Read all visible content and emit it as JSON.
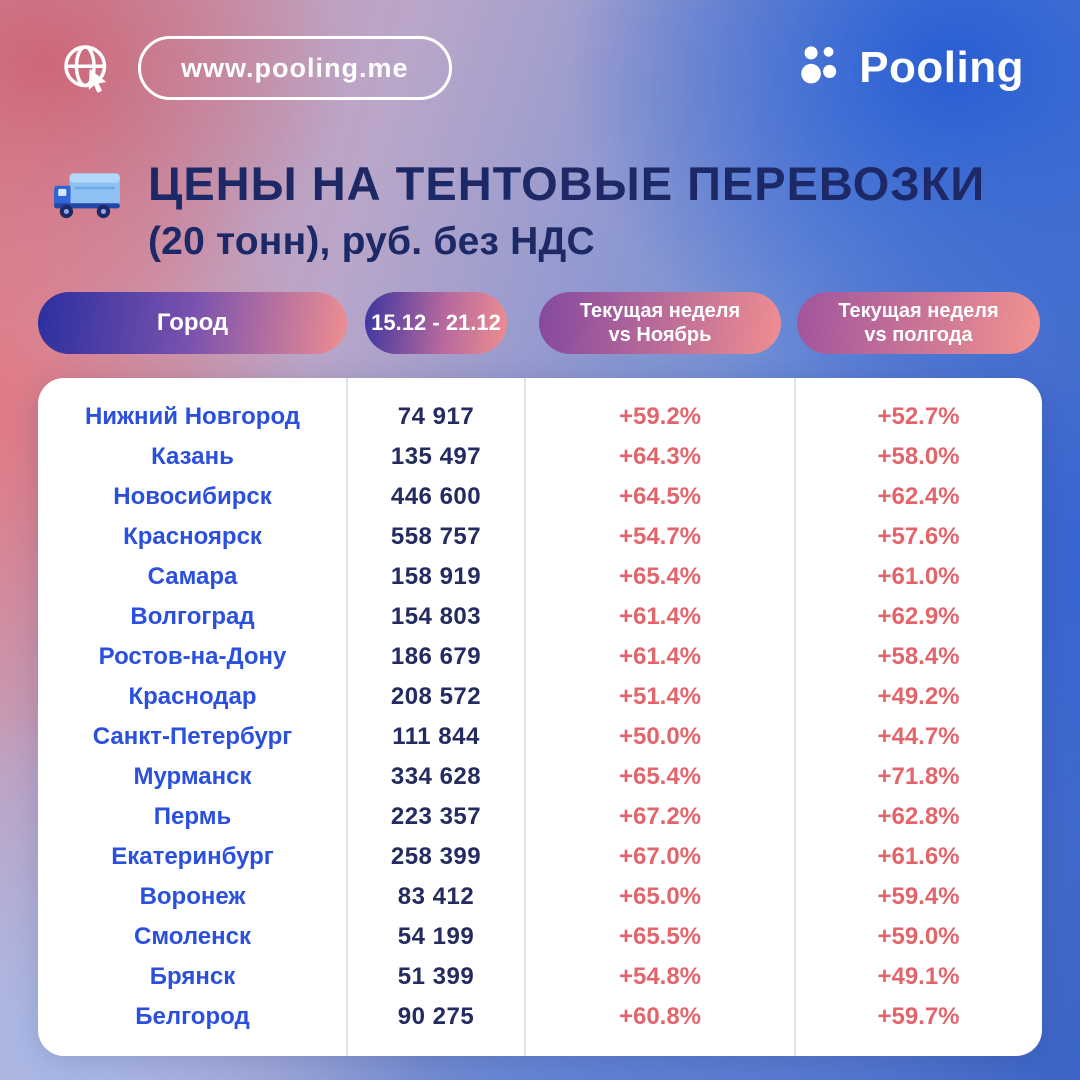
{
  "header": {
    "url": "www.pooling.me",
    "brand": "Pooling"
  },
  "title": {
    "line1": "ЦЕНЫ НА ТЕНТОВЫЕ ПЕРЕВОЗКИ",
    "line2": "(20 тонн), руб. без НДС"
  },
  "chart_data": {
    "type": "table",
    "title": "ЦЕНЫ НА ТЕНТОВЫЕ ПЕРЕВОЗКИ (20 тонн), руб. без НДС",
    "columns": [
      {
        "line1": "Город"
      },
      {
        "line1": "15.12 - 21.12"
      },
      {
        "line1": "Текущая неделя",
        "line2": "vs Ноябрь"
      },
      {
        "line1": "Текущая неделя",
        "line2": "vs полгода"
      }
    ],
    "rows": [
      {
        "city": "Нижний Новгород",
        "price": "74 917",
        "vs_november": "+59.2%",
        "vs_half_year": "+52.7%"
      },
      {
        "city": "Казань",
        "price": "135 497",
        "vs_november": "+64.3%",
        "vs_half_year": "+58.0%"
      },
      {
        "city": "Новосибирск",
        "price": "446 600",
        "vs_november": "+64.5%",
        "vs_half_year": "+62.4%"
      },
      {
        "city": "Красноярск",
        "price": "558 757",
        "vs_november": "+54.7%",
        "vs_half_year": "+57.6%"
      },
      {
        "city": "Самара",
        "price": "158 919",
        "vs_november": "+65.4%",
        "vs_half_year": "+61.0%"
      },
      {
        "city": "Волгоград",
        "price": "154 803",
        "vs_november": "+61.4%",
        "vs_half_year": "+62.9%"
      },
      {
        "city": "Ростов-на-Дону",
        "price": "186 679",
        "vs_november": "+61.4%",
        "vs_half_year": "+58.4%"
      },
      {
        "city": "Краснодар",
        "price": "208 572",
        "vs_november": "+51.4%",
        "vs_half_year": "+49.2%"
      },
      {
        "city": "Санкт-Петербург",
        "price": "111 844",
        "vs_november": "+50.0%",
        "vs_half_year": "+44.7%"
      },
      {
        "city": "Мурманск",
        "price": "334 628",
        "vs_november": "+65.4%",
        "vs_half_year": "+71.8%"
      },
      {
        "city": "Пермь",
        "price": "223 357",
        "vs_november": "+67.2%",
        "vs_half_year": "+62.8%"
      },
      {
        "city": "Екатеринбург",
        "price": "258 399",
        "vs_november": "+67.0%",
        "vs_half_year": "+61.6%"
      },
      {
        "city": "Воронеж",
        "price": "83 412",
        "vs_november": "+65.0%",
        "vs_half_year": "+59.4%"
      },
      {
        "city": "Смоленск",
        "price": "54 199",
        "vs_november": "+65.5%",
        "vs_half_year": "+59.0%"
      },
      {
        "city": "Брянск",
        "price": "51 399",
        "vs_november": "+54.8%",
        "vs_half_year": "+49.1%"
      },
      {
        "city": "Белгород",
        "price": "90 275",
        "vs_november": "+60.8%",
        "vs_half_year": "+59.7%"
      }
    ]
  },
  "colors": {
    "city_text": "#2b50dd",
    "price_text": "#232b60",
    "percent_text": "#e3656c",
    "title_text": "#1d2966",
    "card_bg": "#ffffff",
    "pill_gradient_blue": "#2b2f9f",
    "pill_gradient_pink": "#ef8e91",
    "background_blue": "#3b64c8",
    "background_pink": "#e0757d"
  }
}
